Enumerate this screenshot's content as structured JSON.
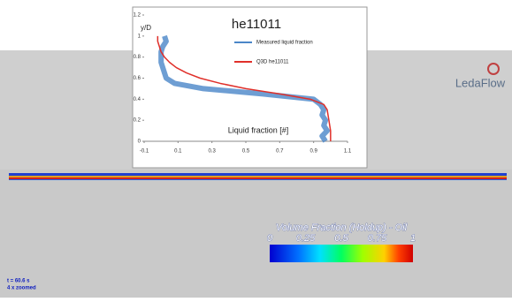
{
  "chart_data": {
    "type": "line",
    "title": "he11011",
    "ylabel": "y/D",
    "xlabel": "Liquid fraction [#]",
    "xlim": [
      -0.1,
      1.1
    ],
    "xticks": [
      -0.1,
      0.1,
      0.3,
      0.5,
      0.7,
      0.9,
      1.1
    ],
    "ylim": [
      0,
      1.2
    ],
    "yticks": [
      0,
      0.2,
      0.4,
      0.6,
      0.8,
      1,
      1.2
    ],
    "series": [
      {
        "name": "Measured liquid fraction",
        "color": "#4a86c8",
        "x": [
          0.97,
          0.95,
          0.98,
          0.96,
          0.97,
          0.95,
          0.96,
          0.94,
          0.9,
          0.6,
          0.25,
          0.08,
          0.03,
          0.02,
          0.01,
          0.0,
          0.0,
          0.0,
          0.01,
          0.03,
          0.02
        ],
        "values": [
          0,
          0.05,
          0.1,
          0.15,
          0.2,
          0.25,
          0.3,
          0.35,
          0.4,
          0.45,
          0.5,
          0.55,
          0.6,
          0.65,
          0.7,
          0.75,
          0.8,
          0.85,
          0.9,
          0.95,
          1.0
        ]
      },
      {
        "name": "Q3D he11011",
        "color": "#e0302a",
        "x": [
          1.0,
          1.0,
          0.99,
          0.98,
          0.96,
          0.88,
          0.7,
          0.5,
          0.35,
          0.23,
          0.15,
          0.09,
          0.05,
          0.02,
          0.0,
          -0.01,
          -0.02,
          -0.02
        ],
        "values": [
          0,
          0.1,
          0.2,
          0.3,
          0.35,
          0.4,
          0.45,
          0.5,
          0.55,
          0.6,
          0.65,
          0.7,
          0.75,
          0.8,
          0.85,
          0.9,
          0.95,
          1.0
        ]
      }
    ]
  },
  "logo": "LedaFlow",
  "colorbar": {
    "title": "Volume Fraction (Holdup) - Oil",
    "lim": [
      0,
      1
    ],
    "ticks": [
      0,
      0.25,
      0.5,
      0.75,
      1
    ]
  },
  "status": {
    "time": "t = 60.6 s",
    "zoom": "4 x zoomed"
  }
}
